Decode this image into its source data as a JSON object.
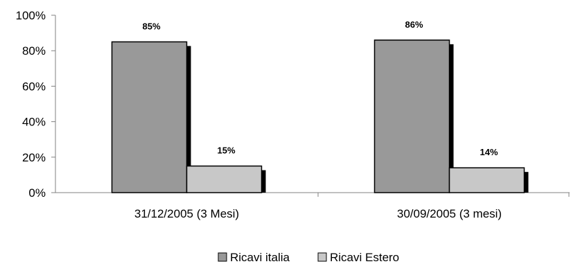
{
  "chart_data": {
    "type": "bar",
    "categories": [
      "31/12/2005 (3 Mesi)",
      "30/09/2005 (3 mesi)"
    ],
    "series": [
      {
        "name": "Ricavi italia",
        "values": [
          85,
          86
        ],
        "labels": [
          "85%",
          "86%"
        ],
        "color": "#999999"
      },
      {
        "name": "Ricavi Estero",
        "values": [
          15,
          14
        ],
        "labels": [
          "15%",
          "14%"
        ],
        "color": "#c8c8c8"
      }
    ],
    "yticks": [
      "0%",
      "20%",
      "40%",
      "60%",
      "80%",
      "100%"
    ],
    "ylim": [
      0,
      100
    ],
    "ytick_step": 20,
    "grid": false,
    "legend_position": "bottom",
    "bar_outline_color": "#000000",
    "shadow_color": "#000000"
  }
}
